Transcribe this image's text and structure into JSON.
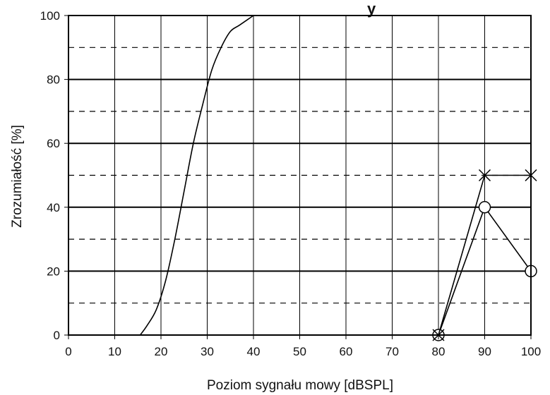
{
  "chart_data": {
    "type": "line",
    "title": "y",
    "xlabel": "Poziom sygnału mowy [dBSPL]",
    "ylabel": "Zrozumiałość [%]",
    "xlim": [
      0,
      100
    ],
    "ylim": [
      0,
      100
    ],
    "x_ticks": [
      "0",
      "10",
      "20",
      "30",
      "40",
      "50",
      "60",
      "70",
      "80",
      "90",
      "100"
    ],
    "y_ticks": [
      "0",
      "20",
      "40",
      "60",
      "80",
      "100"
    ],
    "grid": {
      "vertical_every": 10,
      "horizontal_solid_every": 20,
      "horizontal_dashed_at": [
        10,
        30,
        50,
        70,
        90
      ]
    },
    "series": [
      {
        "style": "smooth-curve",
        "marker": "none",
        "x": [
          15.5,
          17,
          19,
          21,
          23,
          25,
          27,
          29,
          31,
          33,
          35,
          37,
          40
        ],
        "y": [
          0,
          3,
          8,
          17,
          30,
          45,
          60,
          72,
          83,
          90,
          95,
          97,
          100
        ]
      },
      {
        "style": "line",
        "marker": "circle",
        "x": [
          80,
          90,
          100
        ],
        "y": [
          0,
          40,
          20
        ]
      },
      {
        "style": "line",
        "marker": "cross",
        "x": [
          80,
          90,
          100
        ],
        "y": [
          0,
          50,
          50
        ]
      }
    ]
  }
}
